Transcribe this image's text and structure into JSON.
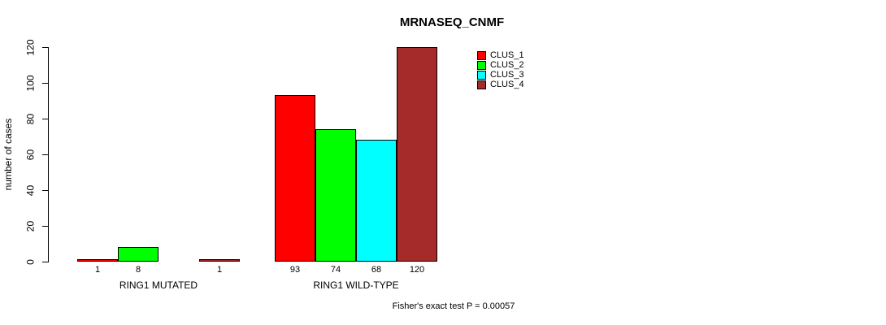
{
  "chart_data": {
    "type": "bar",
    "title": "MRNASEQ_CNMF",
    "ylabel": "number of cases",
    "ylim": [
      0,
      120
    ],
    "yticks": [
      0,
      20,
      40,
      60,
      80,
      100,
      120
    ],
    "grid": false,
    "legend_position": "top-right",
    "categories": [
      "RING1 MUTATED",
      "RING1 WILD-TYPE"
    ],
    "series": [
      {
        "name": "CLUS_1",
        "color": "#FF0000",
        "values": [
          1,
          93
        ]
      },
      {
        "name": "CLUS_2",
        "color": "#00FF00",
        "values": [
          8,
          74
        ]
      },
      {
        "name": "CLUS_3",
        "color": "#00FFFF",
        "values": [
          0,
          68
        ]
      },
      {
        "name": "CLUS_4",
        "color": "#A52A2A",
        "values": [
          1,
          120
        ]
      }
    ],
    "bar_value_labels": [
      [
        "1",
        "8",
        "",
        "1"
      ],
      [
        "93",
        "74",
        "68",
        "120"
      ]
    ],
    "footer": "Fisher's exact test P = 0.00057"
  }
}
